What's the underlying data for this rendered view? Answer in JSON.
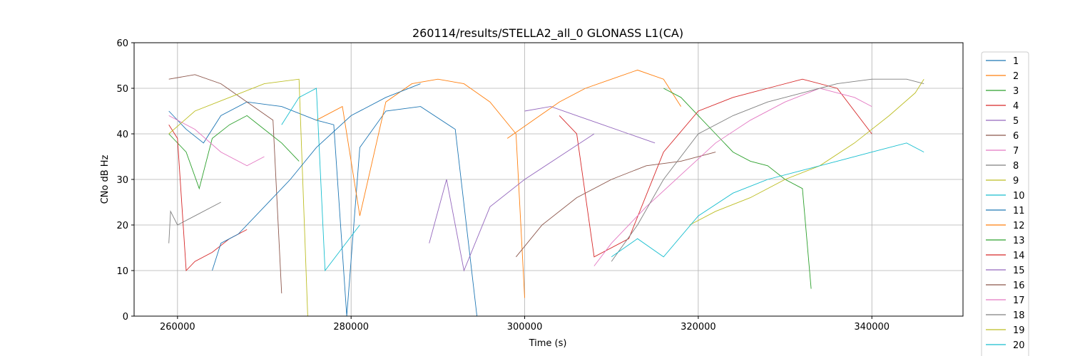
{
  "chart_data": {
    "type": "line",
    "title": "260114/results/STELLA2_all_0 GLONASS L1(CA)",
    "xlabel": "Time (s)",
    "ylabel": "CNo dB Hz",
    "xlim": [
      255000,
      350500
    ],
    "ylim": [
      0,
      60
    ],
    "xticks": [
      260000,
      280000,
      300000,
      320000,
      340000
    ],
    "xtick_labels": [
      "260000",
      "280000",
      "300000",
      "320000",
      "340000"
    ],
    "yticks": [
      0,
      10,
      20,
      30,
      40,
      50,
      60
    ],
    "ytick_labels": [
      "0",
      "10",
      "20",
      "30",
      "40",
      "50",
      "60"
    ],
    "grid": true,
    "legend_position": "right",
    "series": [
      {
        "name": "1",
        "color": "#1f77b4",
        "x": [
          259000,
          261000,
          263000,
          265000,
          268000,
          272000,
          276000,
          278000,
          279500,
          281000,
          284000,
          288000,
          292000,
          294500
        ],
        "y": [
          45,
          41,
          38,
          44,
          47,
          46,
          43,
          42,
          0,
          37,
          45,
          46,
          41,
          0
        ]
      },
      {
        "name": "2",
        "color": "#ff7f0e",
        "x": [
          276000,
          279000,
          281000,
          284000,
          287000,
          290000,
          293000,
          296000,
          299000,
          300000
        ],
        "y": [
          43,
          46,
          22,
          47,
          51,
          52,
          51,
          47,
          40,
          4
        ]
      },
      {
        "name": "3",
        "color": "#2ca02c",
        "x": [
          259000,
          261000,
          262500,
          264000,
          266000,
          268000,
          270000,
          272000,
          274000
        ],
        "y": [
          40,
          36,
          28,
          39,
          42,
          44,
          41,
          38,
          34
        ]
      },
      {
        "name": "4",
        "color": "#d62728",
        "x": [
          259000,
          260000,
          261000,
          262000,
          264000,
          266000,
          268000
        ],
        "y": [
          42,
          39,
          10,
          12,
          14,
          17,
          19
        ]
      },
      {
        "name": "5",
        "color": "#9467bd",
        "x": [
          300000,
          303000,
          306000,
          309000,
          312000,
          315000
        ],
        "y": [
          45,
          46,
          44,
          42,
          40,
          38
        ]
      },
      {
        "name": "6",
        "color": "#8c564b",
        "x": [
          259000,
          262000,
          265000,
          268000,
          271000,
          272000
        ],
        "y": [
          52,
          53,
          51,
          47,
          43,
          5
        ]
      },
      {
        "name": "7",
        "color": "#e377c2",
        "x": [
          259000,
          262000,
          265000,
          268000,
          270000
        ],
        "y": [
          44,
          41,
          36,
          33,
          35
        ]
      },
      {
        "name": "8",
        "color": "#7f7f7f",
        "x": [
          259000,
          259200,
          260000,
          262000,
          265000
        ],
        "y": [
          16,
          23,
          20,
          22,
          25
        ]
      },
      {
        "name": "9",
        "color": "#bcbd22",
        "x": [
          259000,
          262000,
          266000,
          270000,
          274000,
          275000
        ],
        "y": [
          40,
          45,
          48,
          51,
          52,
          0
        ]
      },
      {
        "name": "10",
        "color": "#17becf",
        "x": [
          272000,
          274000,
          276000,
          277000,
          279000,
          281000
        ],
        "y": [
          42,
          48,
          50,
          10,
          15,
          20
        ]
      },
      {
        "name": "11",
        "color": "#1f77b4",
        "x": [
          264000,
          265000,
          267000,
          270000,
          273000,
          276000,
          280000,
          284000,
          288000
        ],
        "y": [
          10,
          16,
          18,
          24,
          30,
          37,
          44,
          48,
          51
        ]
      },
      {
        "name": "12",
        "color": "#ff7f0e",
        "x": [
          298000,
          301000,
          304000,
          307000,
          310000,
          313000,
          316000,
          318000
        ],
        "y": [
          39,
          43,
          47,
          50,
          52,
          54,
          52,
          46
        ]
      },
      {
        "name": "13",
        "color": "#2ca02c",
        "x": [
          316000,
          318000,
          320000,
          322000,
          324000,
          326000,
          328000,
          330000,
          332000,
          333000
        ],
        "y": [
          50,
          48,
          44,
          40,
          36,
          34,
          33,
          30,
          28,
          6
        ]
      },
      {
        "name": "14",
        "color": "#d62728",
        "x": [
          304000,
          306000,
          308000,
          312000,
          316000,
          320000,
          324000,
          328000,
          332000,
          336000,
          340000
        ],
        "y": [
          44,
          40,
          13,
          17,
          36,
          45,
          48,
          50,
          52,
          50,
          40
        ]
      },
      {
        "name": "15",
        "color": "#9467bd",
        "x": [
          289000,
          291000,
          293000,
          296000,
          300000,
          304000,
          308000
        ],
        "y": [
          16,
          30,
          10,
          24,
          30,
          35,
          40
        ]
      },
      {
        "name": "16",
        "color": "#8c564b",
        "x": [
          299000,
          302000,
          306000,
          310000,
          314000,
          318000,
          322000
        ],
        "y": [
          13,
          20,
          26,
          30,
          33,
          34,
          36
        ]
      },
      {
        "name": "17",
        "color": "#e377c2",
        "x": [
          308000,
          310000,
          314000,
          318000,
          322000,
          326000,
          330000,
          334000,
          338000,
          340000
        ],
        "y": [
          11,
          16,
          24,
          31,
          38,
          43,
          47,
          50,
          48,
          46
        ]
      },
      {
        "name": "18",
        "color": "#7f7f7f",
        "x": [
          310000,
          313000,
          316000,
          320000,
          324000,
          328000,
          332000,
          336000,
          340000,
          344000,
          346000
        ],
        "y": [
          12,
          20,
          30,
          40,
          44,
          47,
          49,
          51,
          52,
          52,
          51
        ]
      },
      {
        "name": "19",
        "color": "#bcbd22",
        "x": [
          319000,
          322000,
          326000,
          330000,
          334000,
          338000,
          342000,
          345000,
          346000
        ],
        "y": [
          20,
          23,
          26,
          30,
          33,
          38,
          44,
          49,
          52
        ]
      },
      {
        "name": "20",
        "color": "#17becf",
        "x": [
          310000,
          313000,
          316000,
          320000,
          324000,
          328000,
          332000,
          336000,
          340000,
          344000,
          346000
        ],
        "y": [
          13,
          17,
          13,
          22,
          27,
          30,
          32,
          34,
          36,
          38,
          36
        ]
      }
    ]
  }
}
